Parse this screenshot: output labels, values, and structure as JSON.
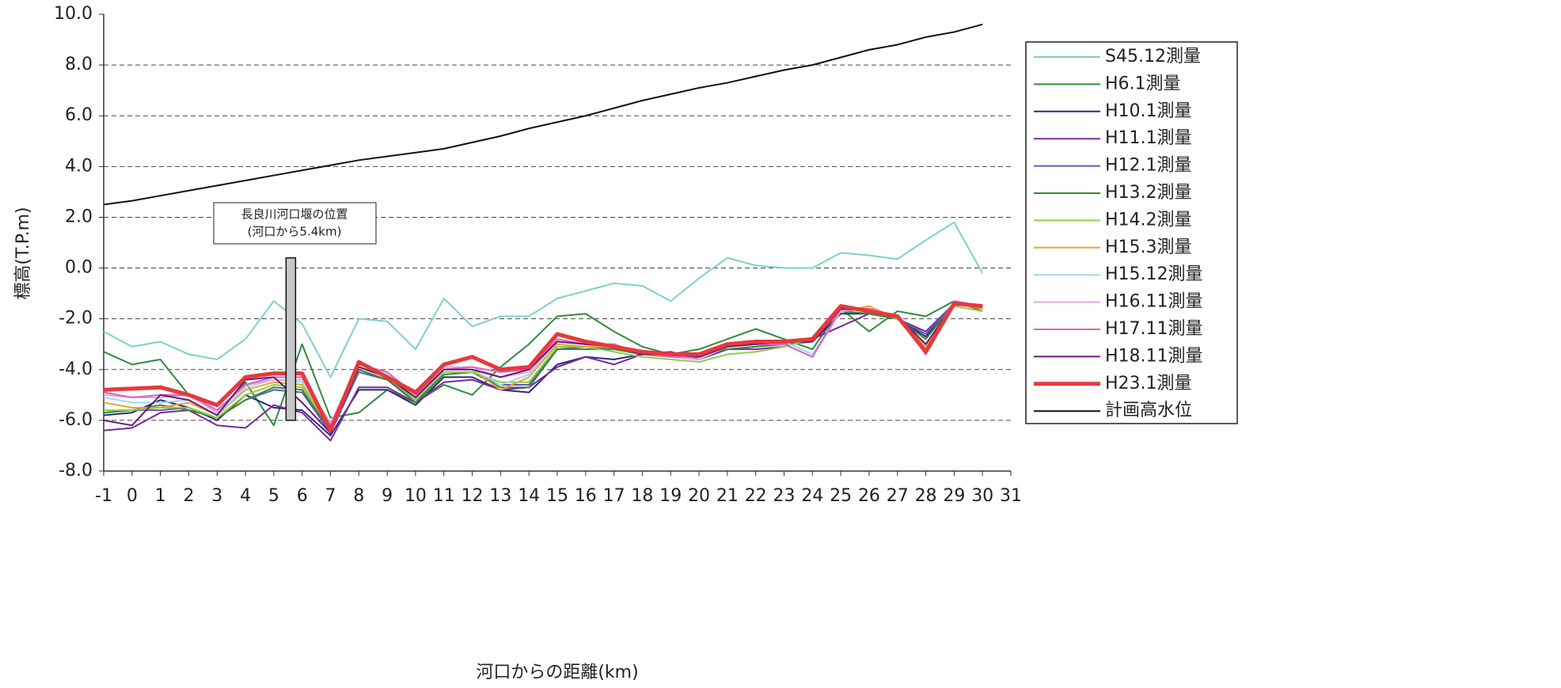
{
  "chart_data": {
    "type": "line",
    "y_label": "標高(T.P.m)",
    "x_label": "河口からの距離(km)",
    "xlim": [
      -1,
      31
    ],
    "xticks": [
      -1,
      0,
      1,
      2,
      3,
      4,
      5,
      6,
      7,
      8,
      9,
      10,
      11,
      12,
      13,
      14,
      15,
      16,
      17,
      18,
      19,
      20,
      21,
      22,
      23,
      24,
      25,
      26,
      27,
      28,
      29,
      30,
      31
    ],
    "ylim": [
      -8,
      10
    ],
    "yticks": [
      {
        "value": -8,
        "label": "-8.0"
      },
      {
        "value": -6,
        "label": "-6.0"
      },
      {
        "value": -4,
        "label": "-4.0"
      },
      {
        "value": -2,
        "label": "-2.0"
      },
      {
        "value": 0,
        "label": "0.0"
      },
      {
        "value": 2,
        "label": "2.0"
      },
      {
        "value": 4,
        "label": "4.0"
      },
      {
        "value": 6,
        "label": "6.0"
      },
      {
        "value": 8,
        "label": "8.0"
      },
      {
        "value": 10,
        "label": "10.0"
      }
    ],
    "grid": true,
    "legend": "right",
    "x": [
      -1,
      0,
      1,
      2,
      3,
      4,
      5,
      6,
      7,
      8,
      9,
      10,
      11,
      12,
      13,
      14,
      15,
      16,
      17,
      18,
      19,
      20,
      21,
      22,
      23,
      24,
      25,
      26,
      27,
      28,
      29,
      30
    ],
    "series": [
      {
        "name": "S45.12測量",
        "color": "#7ecfd0",
        "width": 2,
        "values": [
          -2.5,
          -3.1,
          -2.9,
          -3.4,
          -3.6,
          -2.8,
          -1.3,
          -2.2,
          -4.3,
          -2.0,
          -2.1,
          -3.2,
          -1.2,
          -2.3,
          -1.9,
          -1.9,
          -1.2,
          -0.9,
          -0.6,
          -0.7,
          -1.3,
          -0.4,
          0.4,
          0.1,
          0.0,
          0.0,
          0.6,
          0.5,
          0.35,
          1.1,
          1.8,
          -0.2
        ]
      },
      {
        "name": "H6.1測量",
        "color": "#2e8b3a",
        "width": 2,
        "values": [
          -3.3,
          -3.8,
          -3.6,
          -5.0,
          -5.7,
          -4.5,
          -6.2,
          -3.0,
          -5.9,
          -5.7,
          -4.8,
          -5.3,
          -4.6,
          -5.0,
          -3.9,
          -3.0,
          -1.9,
          -1.8,
          -2.5,
          -3.1,
          -3.4,
          -3.2,
          -2.8,
          -2.4,
          -2.8,
          -3.2,
          -1.6,
          -2.5,
          -1.7,
          -1.9,
          -1.3,
          -1.7
        ]
      },
      {
        "name": "H10.1測量",
        "color": "#2a2a7a",
        "width": 2,
        "values": [
          -5.8,
          -5.7,
          -5.2,
          -5.5,
          -6.0,
          -5.0,
          -5.5,
          -5.6,
          -6.6,
          -4.8,
          -4.8,
          -5.4,
          -4.3,
          -4.3,
          -4.8,
          -4.9,
          -3.8,
          -3.5,
          -3.6,
          -3.4,
          -3.4,
          -3.6,
          -3.2,
          -3.1,
          -3.0,
          -2.9,
          -1.8,
          -1.8,
          -2.0,
          -2.7,
          -1.4,
          -1.5
        ]
      },
      {
        "name": "H11.1測量",
        "color": "#7a2a9a",
        "width": 2,
        "values": [
          -6.4,
          -6.3,
          -5.7,
          -5.6,
          -6.2,
          -6.3,
          -5.4,
          -5.7,
          -6.8,
          -4.7,
          -4.7,
          -5.3,
          -4.5,
          -4.4,
          -4.8,
          -4.7,
          -3.9,
          -3.5,
          -3.8,
          -3.4,
          -3.3,
          -3.6,
          -3.2,
          -3.2,
          -3.1,
          -2.8,
          -2.3,
          -1.8,
          -2.0,
          -2.5,
          -1.4,
          -1.6
        ]
      },
      {
        "name": "H12.1測量",
        "color": "#5a5ac8",
        "width": 2,
        "values": [
          -5.7,
          -5.6,
          -5.6,
          -5.5,
          -5.9,
          -5.2,
          -4.8,
          -4.9,
          -6.5,
          -4.1,
          -4.4,
          -5.2,
          -4.2,
          -4.1,
          -4.6,
          -4.6,
          -3.2,
          -3.1,
          -3.2,
          -3.4,
          -3.5,
          -3.6,
          -3.1,
          -3.0,
          -2.9,
          -2.8,
          -1.7,
          -1.8,
          -2.0,
          -2.6,
          -1.4,
          -1.5
        ]
      },
      {
        "name": "H13.2測量",
        "color": "#3a8a2a",
        "width": 2,
        "values": [
          -5.7,
          -5.6,
          -5.4,
          -5.6,
          -5.9,
          -5.2,
          -4.7,
          -4.8,
          -6.4,
          -4.0,
          -4.4,
          -5.3,
          -4.2,
          -4.1,
          -4.7,
          -4.7,
          -3.2,
          -3.2,
          -3.2,
          -3.4,
          -3.5,
          -3.4,
          -3.2,
          -3.1,
          -3.0,
          -2.8,
          -1.7,
          -1.8,
          -2.0,
          -2.8,
          -1.4,
          -1.5
        ]
      },
      {
        "name": "H14.2測量",
        "color": "#8ad04a",
        "width": 2,
        "values": [
          -5.6,
          -5.6,
          -5.5,
          -5.5,
          -5.9,
          -5.0,
          -4.6,
          -4.7,
          -6.3,
          -3.9,
          -4.3,
          -5.2,
          -4.1,
          -4.1,
          -4.5,
          -4.5,
          -3.1,
          -3.1,
          -3.3,
          -3.5,
          -3.6,
          -3.7,
          -3.4,
          -3.3,
          -3.1,
          -2.8,
          -1.7,
          -1.6,
          -2.0,
          -3.0,
          -1.5,
          -1.7
        ]
      },
      {
        "name": "H15.3測量",
        "color": "#f0a030",
        "width": 2,
        "values": [
          -5.3,
          -5.5,
          -5.5,
          -5.3,
          -5.8,
          -4.8,
          -4.5,
          -4.6,
          -6.2,
          -3.9,
          -4.2,
          -5.1,
          -4.0,
          -4.0,
          -4.8,
          -4.3,
          -3.0,
          -3.1,
          -3.1,
          -3.4,
          -3.5,
          -3.5,
          -3.1,
          -3.0,
          -2.9,
          -2.8,
          -1.7,
          -1.5,
          -2.0,
          -3.1,
          -1.4,
          -1.6
        ]
      },
      {
        "name": "H15.12測量",
        "color": "#9adcec",
        "width": 2,
        "values": [
          -5.1,
          -5.3,
          -5.3,
          -5.2,
          -5.8,
          -4.7,
          -4.4,
          -4.5,
          -6.2,
          -3.8,
          -4.2,
          -5.0,
          -4.0,
          -4.0,
          -4.6,
          -4.2,
          -2.9,
          -3.0,
          -3.0,
          -3.4,
          -3.5,
          -3.5,
          -3.1,
          -3.0,
          -2.9,
          -3.4,
          -1.7,
          -1.6,
          -1.9,
          -3.2,
          -1.3,
          -1.5
        ]
      },
      {
        "name": "H16.11測量",
        "color": "#e0a8e0",
        "width": 2,
        "values": [
          -5.0,
          -5.1,
          -5.1,
          -5.0,
          -5.7,
          -4.6,
          -4.4,
          -4.4,
          -6.1,
          -3.8,
          -4.1,
          -5.0,
          -3.9,
          -3.9,
          -4.3,
          -4.1,
          -2.9,
          -3.0,
          -3.1,
          -3.4,
          -3.5,
          -3.6,
          -3.1,
          -3.0,
          -3.0,
          -3.5,
          -1.7,
          -1.6,
          -1.9,
          -3.4,
          -1.3,
          -1.5
        ]
      },
      {
        "name": "H17.11測量",
        "color": "#e060c0",
        "width": 2,
        "values": [
          -4.9,
          -5.1,
          -5.0,
          -5.0,
          -5.6,
          -4.6,
          -4.3,
          -4.3,
          -6.2,
          -3.8,
          -4.1,
          -5.0,
          -4.0,
          -3.9,
          -4.1,
          -4.0,
          -2.8,
          -3.0,
          -3.0,
          -3.4,
          -3.5,
          -3.5,
          -3.1,
          -3.0,
          -3.0,
          -3.5,
          -1.6,
          -1.6,
          -1.9,
          -3.4,
          -1.3,
          -1.5
        ]
      },
      {
        "name": "H18.11測量",
        "color": "#6a1a7a",
        "width": 2,
        "values": [
          -6.0,
          -6.2,
          -5.0,
          -5.2,
          -5.8,
          -4.4,
          -4.3,
          -5.3,
          -6.5,
          -3.9,
          -4.3,
          -5.1,
          -4.0,
          -4.0,
          -4.3,
          -4.0,
          -2.9,
          -3.0,
          -3.1,
          -3.4,
          -3.4,
          -3.5,
          -3.1,
          -3.0,
          -2.9,
          -2.9,
          -1.6,
          -1.7,
          -1.9,
          -3.0,
          -1.4,
          -1.5
        ]
      },
      {
        "name": "H23.1測量",
        "color": "#e8383c",
        "width": 5,
        "values": [
          -4.8,
          -4.75,
          -4.7,
          -5.0,
          -5.4,
          -4.3,
          -4.15,
          -4.15,
          -6.4,
          -3.7,
          -4.3,
          -4.9,
          -3.8,
          -3.5,
          -4.0,
          -3.9,
          -2.6,
          -2.9,
          -3.1,
          -3.3,
          -3.4,
          -3.4,
          -3.0,
          -2.9,
          -2.9,
          -2.8,
          -1.5,
          -1.7,
          -1.9,
          -3.3,
          -1.4,
          -1.5
        ]
      },
      {
        "name": "計画高水位",
        "color": "#111111",
        "width": 2,
        "values": [
          2.5,
          2.65,
          2.85,
          3.05,
          3.25,
          3.45,
          3.65,
          3.85,
          4.05,
          4.25,
          4.4,
          4.55,
          4.7,
          4.95,
          5.2,
          5.5,
          5.75,
          6.0,
          6.3,
          6.6,
          6.85,
          7.1,
          7.3,
          7.55,
          7.8,
          8.0,
          8.3,
          8.6,
          8.8,
          9.1,
          9.3,
          9.6
        ]
      }
    ],
    "annotation": {
      "lines": [
        "長良川河口堰の位置",
        "(河口から5.4km)"
      ],
      "x": 5.6,
      "top": 0.4,
      "bottom": -6.0
    }
  }
}
